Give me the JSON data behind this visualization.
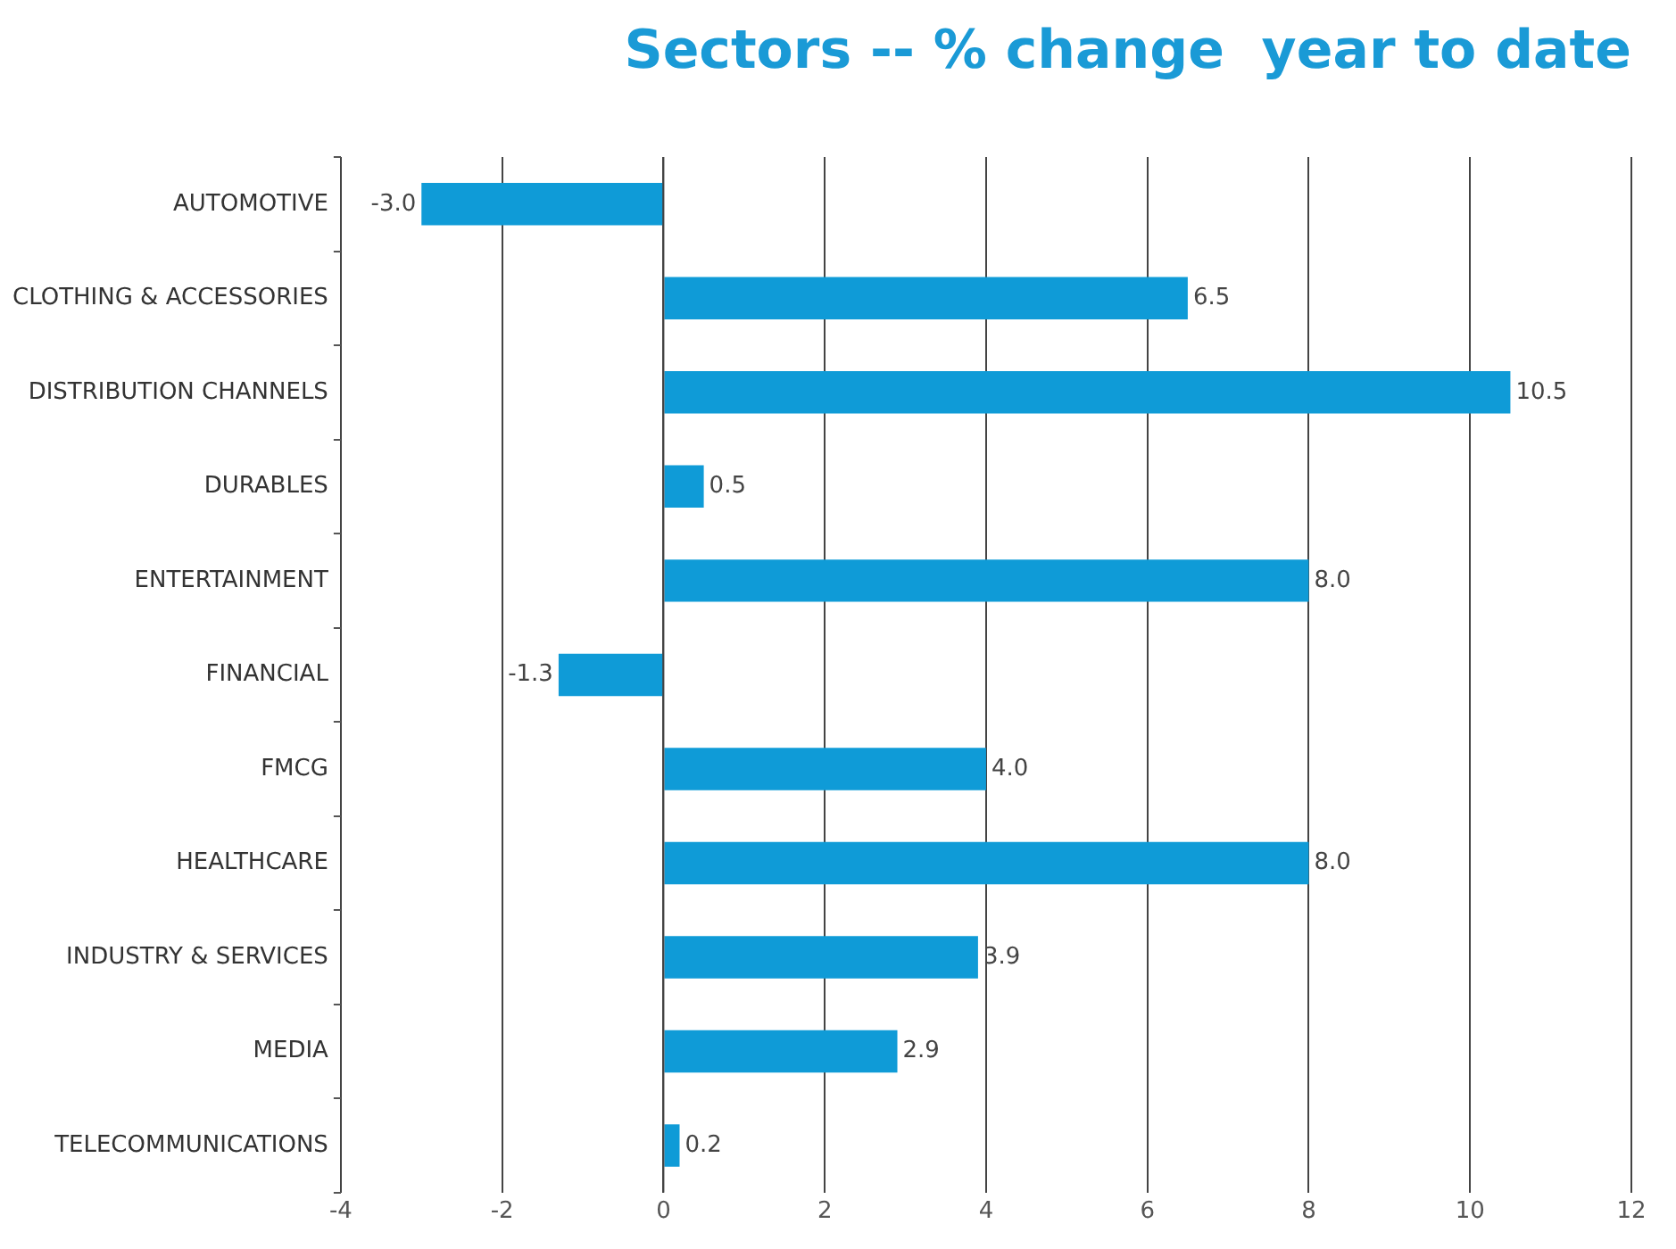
{
  "chart_data": {
    "type": "bar",
    "orientation": "horizontal",
    "title": "Sectors -- % change  year to date",
    "categories": [
      "AUTOMOTIVE",
      "CLOTHING & ACCESSORIES",
      "DISTRIBUTION CHANNELS",
      "DURABLES",
      "ENTERTAINMENT",
      "FINANCIAL",
      "FMCG",
      "HEALTHCARE",
      "INDUSTRY & SERVICES",
      "MEDIA",
      "TELECOMMUNICATIONS"
    ],
    "values": [
      -3.0,
      6.5,
      10.5,
      0.5,
      8.0,
      -1.3,
      4.0,
      8.0,
      3.9,
      2.9,
      0.2
    ],
    "value_labels": [
      "-3.0",
      "6.5",
      "10.5",
      "0.5",
      "8.0",
      "-1.3",
      "4.0",
      "8.0",
      "3.9",
      "2.9",
      "0.2"
    ],
    "color": "#0f9bd7",
    "xlim": [
      -4,
      12
    ],
    "xticks": [
      -4,
      -2,
      0,
      2,
      4,
      6,
      8,
      10,
      12
    ],
    "grid": "x"
  }
}
